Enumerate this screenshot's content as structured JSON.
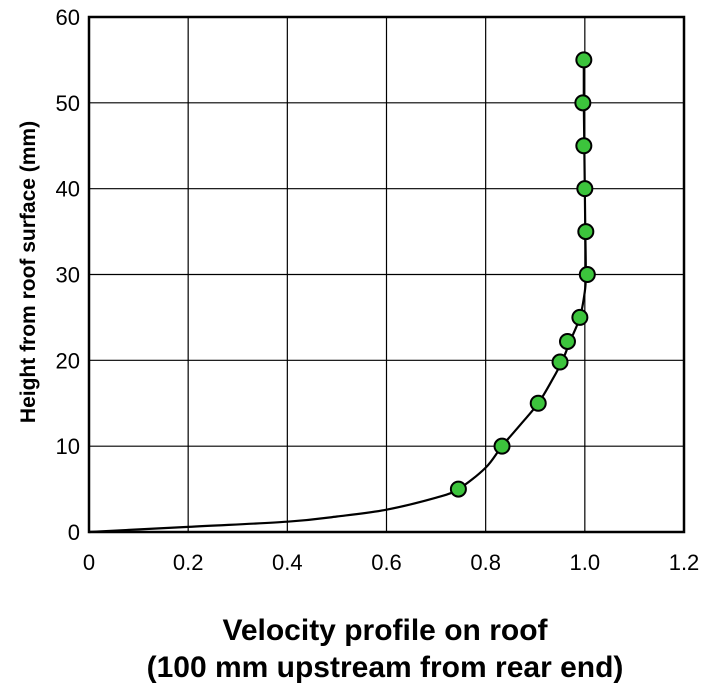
{
  "chart_data": {
    "type": "scatter",
    "title": "",
    "xlabel_line1": "Velocity profile on roof",
    "xlabel_line2": "(100 mm upstream from rear end)",
    "ylabel": "Height from roof surface (mm)",
    "xlim": [
      0,
      1.2
    ],
    "ylim": [
      0,
      60
    ],
    "x_ticks": [
      "0",
      "0.2",
      "0.4",
      "0.6",
      "0.8",
      "1.0",
      "1.2"
    ],
    "y_ticks": [
      "0",
      "10",
      "20",
      "30",
      "40",
      "50",
      "60"
    ],
    "grid": true,
    "series": [
      {
        "kind": "points",
        "color": "#3cc43c",
        "points": [
          {
            "x": 0.745,
            "y": 5
          },
          {
            "x": 0.833,
            "y": 10
          },
          {
            "x": 0.906,
            "y": 15
          },
          {
            "x": 0.95,
            "y": 19.8
          },
          {
            "x": 0.965,
            "y": 22.2
          },
          {
            "x": 0.99,
            "y": 25
          },
          {
            "x": 1.005,
            "y": 30
          },
          {
            "x": 1.002,
            "y": 35
          },
          {
            "x": 1.0,
            "y": 40
          },
          {
            "x": 0.998,
            "y": 45
          },
          {
            "x": 0.996,
            "y": 50
          },
          {
            "x": 0.998,
            "y": 55
          }
        ]
      },
      {
        "kind": "curve",
        "color": "#000000",
        "points": [
          {
            "x": 0.0,
            "y": 0
          },
          {
            "x": 0.2,
            "y": 0.6
          },
          {
            "x": 0.4,
            "y": 1.2
          },
          {
            "x": 0.5,
            "y": 1.8
          },
          {
            "x": 0.6,
            "y": 2.6
          },
          {
            "x": 0.7,
            "y": 4.0
          },
          {
            "x": 0.745,
            "y": 5
          },
          {
            "x": 0.8,
            "y": 7.5
          },
          {
            "x": 0.833,
            "y": 10
          },
          {
            "x": 0.87,
            "y": 12.5
          },
          {
            "x": 0.906,
            "y": 15
          },
          {
            "x": 0.935,
            "y": 17.8
          },
          {
            "x": 0.955,
            "y": 20
          },
          {
            "x": 0.97,
            "y": 22.2
          },
          {
            "x": 0.99,
            "y": 25
          },
          {
            "x": 1.0,
            "y": 28
          },
          {
            "x": 1.002,
            "y": 30
          },
          {
            "x": 1.001,
            "y": 35
          },
          {
            "x": 1.0,
            "y": 40
          },
          {
            "x": 0.999,
            "y": 45
          },
          {
            "x": 0.998,
            "y": 50
          },
          {
            "x": 0.998,
            "y": 55
          }
        ]
      }
    ]
  }
}
